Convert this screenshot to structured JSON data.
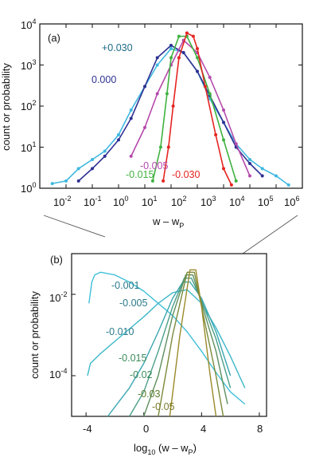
{
  "chart_data": [
    {
      "panel": "(a)",
      "type": "line",
      "title": "",
      "xlabel_main": "w – w",
      "xlabel_sub": "P",
      "ylabel": "count  or  probability",
      "xscale": "log",
      "yscale": "log",
      "xlim": [
        0.001,
        10000000
      ],
      "ylim": [
        1,
        10000
      ],
      "xticks": [
        {
          "base": "10",
          "exp": "-2",
          "value": 0.01
        },
        {
          "base": "10",
          "exp": "-1",
          "value": 0.1
        },
        {
          "base": "10",
          "exp": "0",
          "value": 1
        },
        {
          "base": "10",
          "exp": "1",
          "value": 10
        },
        {
          "base": "10",
          "exp": "2",
          "value": 100
        },
        {
          "base": "10",
          "exp": "3",
          "value": 1000
        },
        {
          "base": "10",
          "exp": "4",
          "value": 10000
        },
        {
          "base": "10",
          "exp": "5",
          "value": 100000
        },
        {
          "base": "10",
          "exp": "6",
          "value": 1000000
        }
      ],
      "yticks": [
        {
          "base": "10",
          "exp": "0",
          "value": 1
        },
        {
          "base": "10",
          "exp": "1",
          "value": 10
        },
        {
          "base": "10",
          "exp": "2",
          "value": 100
        },
        {
          "base": "10",
          "exp": "3",
          "value": 1000
        },
        {
          "base": "10",
          "exp": "4",
          "value": 10000
        }
      ],
      "series": [
        {
          "name": "+0.030",
          "color": "#3fb8e0",
          "x": [
            0.003,
            0.01,
            0.03,
            0.1,
            0.3,
            1,
            3,
            10,
            30,
            100,
            300,
            1000,
            3000,
            10000,
            30000,
            100000,
            300000,
            1000000,
            3000000
          ],
          "y": [
            1.3,
            1.5,
            3,
            5,
            8,
            20,
            80,
            300,
            1000,
            2500,
            2000,
            700,
            150,
            40,
            12,
            5,
            3,
            2,
            1.2
          ]
        },
        {
          "name": "0.000",
          "color": "#2e3192",
          "x": [
            0.03,
            0.1,
            0.3,
            1,
            3,
            10,
            30,
            100,
            300,
            1000,
            3000,
            10000,
            30000,
            100000,
            300000
          ],
          "y": [
            1.5,
            3,
            6,
            15,
            50,
            300,
            1500,
            3000,
            2000,
            700,
            180,
            40,
            10,
            4,
            2
          ]
        },
        {
          "name": "-0.005",
          "color": "#b54aab",
          "x": [
            3,
            10,
            30,
            100,
            300,
            1000,
            3000,
            10000,
            30000,
            100000
          ],
          "y": [
            6,
            30,
            200,
            1000,
            4000,
            2000,
            500,
            80,
            12,
            2
          ]
        },
        {
          "name": "-0.015",
          "color": "#3fb13f",
          "x": [
            20,
            40,
            70,
            100,
            200,
            400,
            1000,
            3000,
            10000,
            30000
          ],
          "y": [
            1.5,
            10,
            200,
            1500,
            5000,
            5000,
            1500,
            200,
            15,
            1.5
          ]
        },
        {
          "name": "-0.030",
          "color": "#e52420",
          "x": [
            50,
            80,
            120,
            200,
            400,
            700,
            1000,
            2000,
            5000,
            10000,
            20000
          ],
          "y": [
            1.5,
            10,
            100,
            1500,
            6000,
            5000,
            2500,
            300,
            20,
            3,
            1.2
          ]
        }
      ]
    },
    {
      "panel": "(b)",
      "type": "line",
      "title": "",
      "xlabel_main": "log",
      "xlabel_base": "10",
      "xlabel_rest": " (w – w",
      "xlabel_sub": "P",
      "xlabel_close": ")",
      "ylabel": "count  or  probability",
      "xscale": "linear",
      "yscale": "log",
      "xlim": [
        -5,
        8.5
      ],
      "ylim": [
        1e-05,
        0.1
      ],
      "xticks": [
        {
          "label": "-4",
          "value": -4
        },
        {
          "label": "0",
          "value": 0
        },
        {
          "label": "4",
          "value": 4
        },
        {
          "label": "8",
          "value": 8
        }
      ],
      "yticks": [
        {
          "base": "10",
          "exp": "-2",
          "value": 0.01
        },
        {
          "base": "10",
          "exp": "-4",
          "value": 0.0001
        }
      ],
      "series": [
        {
          "name": "-0.001",
          "color": "#3fbfd8",
          "x": [
            -3.8,
            -3.6,
            -3.4,
            -3.0,
            -2.0,
            -1.0,
            0,
            1,
            2,
            3,
            4,
            5,
            6,
            7
          ],
          "y": [
            0.006,
            0.02,
            0.03,
            0.035,
            0.03,
            0.02,
            0.012,
            0.006,
            0.003,
            0.0012,
            0.0004,
            0.00012,
            4e-05,
            2e-05
          ]
        },
        {
          "name": "-0.005",
          "color": "#3db8c8",
          "x": [
            -3.9,
            -3.7,
            -3,
            -2,
            -1,
            0,
            1,
            2,
            3,
            4,
            5,
            6,
            7
          ],
          "y": [
            0.0001,
            0.0002,
            0.00035,
            0.0007,
            0.0014,
            0.0028,
            0.006,
            0.011,
            0.013,
            0.006,
            0.0015,
            0.0003,
            5e-05
          ]
        },
        {
          "name": "-0.010",
          "color": "#3aa6b0",
          "x": [
            -2.5,
            -1,
            0,
            1,
            2,
            2.7,
            3.2,
            4,
            5,
            6
          ],
          "y": [
            1e-05,
            5e-05,
            0.0002,
            0.0012,
            0.008,
            0.02,
            0.02,
            0.008,
            0.0012,
            0.0001
          ]
        },
        {
          "name": "-0.015",
          "color": "#4a9e88",
          "x": [
            -1,
            0,
            1,
            2,
            2.8,
            3.3,
            4,
            5,
            6
          ],
          "y": [
            1e-05,
            4e-05,
            0.0004,
            0.005,
            0.025,
            0.025,
            0.007,
            0.0008,
            5e-05
          ]
        },
        {
          "name": "-0.02",
          "color": "#5c8f5c",
          "x": [
            0,
            1,
            2,
            2.9,
            3.4,
            4,
            5,
            5.8
          ],
          "y": [
            1e-05,
            0.0001,
            0.003,
            0.03,
            0.03,
            0.006,
            0.0004,
            2e-05
          ]
        },
        {
          "name": "-0.03",
          "color": "#7a8a3a",
          "x": [
            1,
            2,
            3,
            3.5,
            4,
            5,
            5.5
          ],
          "y": [
            1e-05,
            0.001,
            0.035,
            0.035,
            0.005,
            0.0001,
            1e-05
          ]
        },
        {
          "name": "-0.05",
          "color": "#9a8a2a",
          "x": [
            1.8,
            2.5,
            3.2,
            3.6,
            4,
            4.6,
            5
          ],
          "y": [
            1e-05,
            0.001,
            0.04,
            0.04,
            0.005,
            0.0001,
            1e-05
          ]
        }
      ]
    }
  ]
}
